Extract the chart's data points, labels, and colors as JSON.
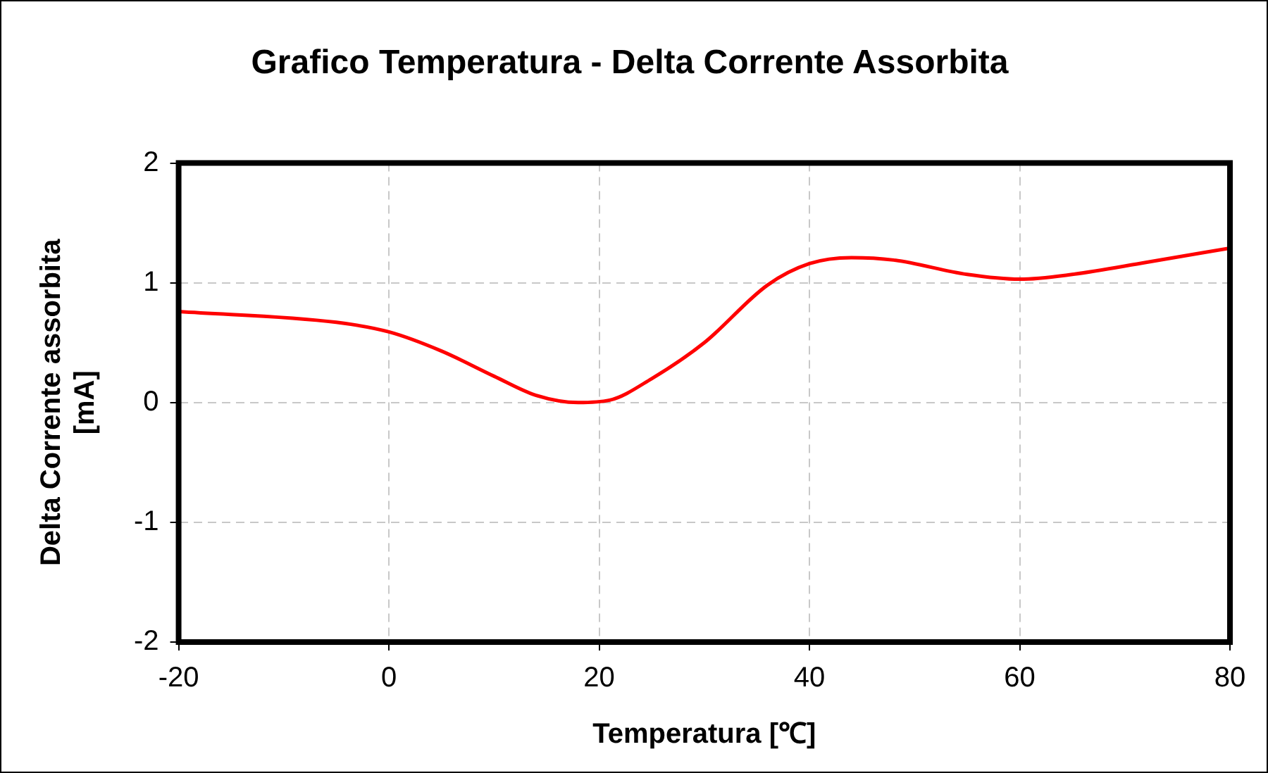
{
  "chart_data": {
    "type": "line",
    "title": "Grafico Temperatura - Delta Corrente Assorbita",
    "xlabel": "Temperatura [℃]",
    "ylabel": "Delta Corrente assorbita\n[mA]",
    "x": [
      -20,
      -5,
      0,
      5,
      10,
      14,
      18,
      21,
      25,
      30,
      36,
      40,
      44,
      48,
      55,
      60,
      65,
      72,
      80
    ],
    "series": [
      {
        "color": "#ff0000",
        "values": [
          0.76,
          0.67,
          0.59,
          0.43,
          0.22,
          0.06,
          0.0,
          0.02,
          0.2,
          0.5,
          0.98,
          1.16,
          1.21,
          1.19,
          1.07,
          1.03,
          1.07,
          1.17,
          1.29
        ]
      }
    ],
    "xlim": [
      -20,
      80
    ],
    "xticks": [
      -20,
      0,
      20,
      40,
      60,
      80
    ],
    "ylim": [
      -2,
      2
    ],
    "yticks": [
      -2,
      -1,
      0,
      1,
      2
    ],
    "grid": true,
    "legend": false,
    "marker": "none",
    "line_style": "solid"
  }
}
